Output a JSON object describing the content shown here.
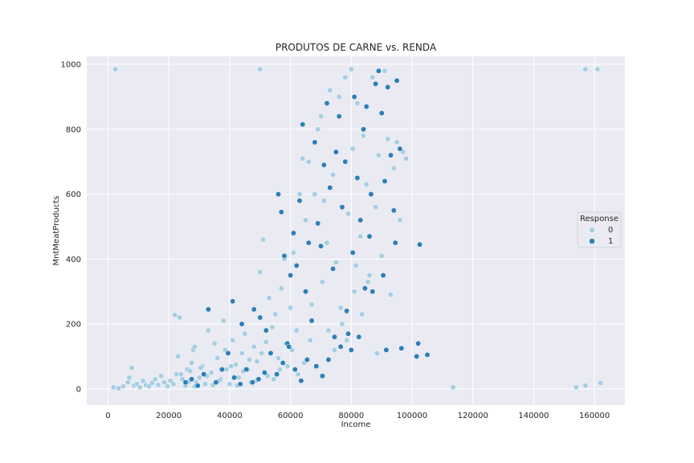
{
  "chart_data": {
    "type": "scatter",
    "title": "PRODUTOS DE CARNE vs. RENDA",
    "xlabel": "Income",
    "ylabel": "MntMeatProducts",
    "xlim": [
      -7000,
      170000
    ],
    "ylim": [
      -50,
      1025
    ],
    "xticks": [
      0,
      20000,
      40000,
      60000,
      80000,
      100000,
      120000,
      140000,
      160000
    ],
    "yticks": [
      0,
      200,
      400,
      600,
      800,
      1000
    ],
    "grid": true,
    "legend": {
      "title": "Response",
      "placement": "right"
    },
    "colors": {
      "0": "#a6cee3",
      "1": "#2d7fb8",
      "background": "#eaeaf2",
      "grid": "#ffffff",
      "edge": "#ffffff"
    },
    "series": [
      {
        "name": "0",
        "points": [
          [
            2400,
            985
          ],
          [
            50000,
            985
          ],
          [
            157000,
            985
          ],
          [
            161000,
            985
          ],
          [
            113500,
            5
          ],
          [
            154000,
            5
          ],
          [
            157000,
            10
          ],
          [
            162000,
            18
          ],
          [
            1800,
            5
          ],
          [
            3500,
            2
          ],
          [
            5000,
            8
          ],
          [
            6500,
            20
          ],
          [
            7000,
            35
          ],
          [
            7800,
            65
          ],
          [
            8500,
            10
          ],
          [
            9500,
            15
          ],
          [
            10500,
            5
          ],
          [
            11500,
            25
          ],
          [
            12500,
            12
          ],
          [
            13500,
            8
          ],
          [
            14500,
            18
          ],
          [
            15500,
            30
          ],
          [
            16500,
            12
          ],
          [
            17500,
            40
          ],
          [
            18500,
            20
          ],
          [
            19500,
            8
          ],
          [
            20500,
            25
          ],
          [
            21500,
            15
          ],
          [
            22000,
            228
          ],
          [
            22500,
            45
          ],
          [
            23000,
            100
          ],
          [
            23500,
            220
          ],
          [
            24500,
            30
          ],
          [
            25500,
            10
          ],
          [
            26000,
            60
          ],
          [
            27000,
            55
          ],
          [
            27500,
            80
          ],
          [
            28000,
            120
          ],
          [
            28500,
            130
          ],
          [
            29000,
            20
          ],
          [
            30000,
            35
          ],
          [
            31000,
            70
          ],
          [
            32000,
            15
          ],
          [
            33000,
            180
          ],
          [
            34000,
            50
          ],
          [
            35000,
            140
          ],
          [
            36000,
            95
          ],
          [
            37000,
            30
          ],
          [
            38000,
            210
          ],
          [
            38500,
            120
          ],
          [
            39000,
            60
          ],
          [
            40000,
            15
          ],
          [
            41000,
            150
          ],
          [
            42000,
            75
          ],
          [
            43000,
            35
          ],
          [
            44000,
            110
          ],
          [
            45000,
            170
          ],
          [
            46000,
            60
          ],
          [
            47000,
            20
          ],
          [
            48000,
            130
          ],
          [
            49000,
            85
          ],
          [
            50000,
            360
          ],
          [
            51000,
            460
          ],
          [
            52000,
            145
          ],
          [
            53000,
            280
          ],
          [
            54000,
            190
          ],
          [
            55000,
            230
          ],
          [
            56000,
            95
          ],
          [
            57000,
            310
          ],
          [
            58000,
            400
          ],
          [
            58500,
            140
          ],
          [
            59000,
            70
          ],
          [
            60000,
            250
          ],
          [
            61000,
            420
          ],
          [
            62000,
            180
          ],
          [
            63000,
            600
          ],
          [
            64000,
            710
          ],
          [
            65000,
            520
          ],
          [
            66000,
            700
          ],
          [
            67000,
            260
          ],
          [
            68000,
            600
          ],
          [
            69000,
            800
          ],
          [
            70000,
            840
          ],
          [
            70500,
            330
          ],
          [
            71000,
            580
          ],
          [
            72000,
            450
          ],
          [
            73000,
            920
          ],
          [
            74000,
            660
          ],
          [
            75000,
            390
          ],
          [
            76000,
            900
          ],
          [
            77000,
            200
          ],
          [
            78000,
            960
          ],
          [
            79000,
            540
          ],
          [
            80000,
            985
          ],
          [
            80500,
            740
          ],
          [
            81000,
            300
          ],
          [
            82000,
            880
          ],
          [
            83000,
            470
          ],
          [
            84000,
            780
          ],
          [
            85000,
            630
          ],
          [
            86000,
            350
          ],
          [
            87000,
            960
          ],
          [
            88000,
            560
          ],
          [
            89000,
            720
          ],
          [
            90000,
            410
          ],
          [
            91000,
            980
          ],
          [
            92000,
            770
          ],
          [
            93000,
            290
          ],
          [
            94000,
            680
          ],
          [
            95000,
            760
          ],
          [
            96000,
            520
          ],
          [
            97000,
            730
          ],
          [
            98000,
            710
          ],
          [
            72500,
            180
          ],
          [
            74500,
            120
          ],
          [
            76500,
            250
          ],
          [
            78500,
            150
          ],
          [
            81500,
            380
          ],
          [
            83500,
            230
          ],
          [
            85500,
            330
          ],
          [
            88500,
            110
          ],
          [
            66500,
            150
          ],
          [
            64500,
            80
          ],
          [
            62500,
            45
          ],
          [
            60500,
            120
          ],
          [
            56500,
            60
          ],
          [
            54500,
            30
          ],
          [
            52500,
            40
          ],
          [
            50500,
            110
          ],
          [
            48500,
            25
          ],
          [
            46500,
            90
          ],
          [
            44500,
            55
          ],
          [
            42500,
            10
          ],
          [
            40500,
            70
          ],
          [
            36500,
            25
          ],
          [
            34500,
            12
          ],
          [
            32500,
            40
          ],
          [
            30500,
            65
          ],
          [
            28500,
            8
          ],
          [
            26500,
            22
          ],
          [
            24000,
            45
          ]
        ]
      },
      {
        "name": "1",
        "points": [
          [
            33000,
            245
          ],
          [
            41000,
            270
          ],
          [
            44000,
            200
          ],
          [
            48000,
            245
          ],
          [
            50000,
            220
          ],
          [
            52000,
            180
          ],
          [
            56000,
            600
          ],
          [
            57000,
            545
          ],
          [
            58000,
            410
          ],
          [
            59000,
            140
          ],
          [
            60000,
            350
          ],
          [
            61000,
            480
          ],
          [
            62000,
            380
          ],
          [
            63000,
            580
          ],
          [
            64000,
            815
          ],
          [
            65000,
            300
          ],
          [
            66000,
            450
          ],
          [
            67000,
            210
          ],
          [
            68000,
            760
          ],
          [
            69000,
            510
          ],
          [
            70000,
            440
          ],
          [
            71000,
            690
          ],
          [
            72000,
            880
          ],
          [
            73000,
            620
          ],
          [
            74000,
            370
          ],
          [
            75000,
            730
          ],
          [
            76000,
            840
          ],
          [
            77000,
            560
          ],
          [
            78000,
            700
          ],
          [
            79000,
            170
          ],
          [
            80000,
            120
          ],
          [
            80500,
            420
          ],
          [
            81000,
            900
          ],
          [
            82000,
            650
          ],
          [
            83000,
            520
          ],
          [
            84000,
            800
          ],
          [
            85000,
            870
          ],
          [
            86000,
            470
          ],
          [
            87000,
            300
          ],
          [
            88000,
            940
          ],
          [
            89000,
            980
          ],
          [
            90000,
            850
          ],
          [
            91000,
            640
          ],
          [
            92000,
            930
          ],
          [
            93000,
            720
          ],
          [
            94000,
            550
          ],
          [
            95000,
            950
          ],
          [
            96000,
            740
          ],
          [
            102000,
            140
          ],
          [
            102500,
            445
          ],
          [
            105000,
            105
          ],
          [
            101500,
            100
          ],
          [
            96500,
            125
          ],
          [
            94500,
            450
          ],
          [
            91500,
            120
          ],
          [
            90500,
            350
          ],
          [
            86500,
            600
          ],
          [
            84500,
            310
          ],
          [
            82500,
            160
          ],
          [
            78500,
            240
          ],
          [
            76500,
            130
          ],
          [
            74500,
            160
          ],
          [
            72500,
            90
          ],
          [
            70500,
            40
          ],
          [
            68500,
            70
          ],
          [
            65500,
            90
          ],
          [
            63500,
            25
          ],
          [
            61500,
            60
          ],
          [
            59500,
            130
          ],
          [
            57500,
            80
          ],
          [
            55500,
            45
          ],
          [
            53500,
            110
          ],
          [
            51500,
            50
          ],
          [
            49500,
            30
          ],
          [
            47500,
            20
          ],
          [
            45500,
            60
          ],
          [
            43500,
            15
          ],
          [
            41500,
            35
          ],
          [
            39500,
            110
          ],
          [
            37500,
            60
          ],
          [
            35500,
            20
          ],
          [
            31500,
            45
          ],
          [
            29500,
            10
          ],
          [
            27500,
            30
          ],
          [
            25500,
            20
          ]
        ]
      }
    ]
  }
}
